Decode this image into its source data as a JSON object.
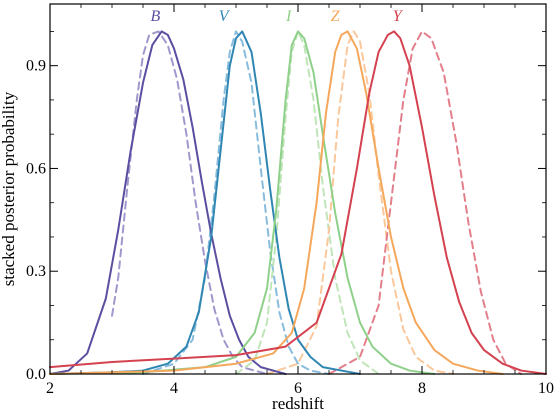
{
  "chart_data": {
    "type": "line",
    "xlabel": "redshift",
    "ylabel": "stacked posterior probability",
    "xlim": [
      2,
      10
    ],
    "ylim": [
      0,
      1.08
    ],
    "xticks": [
      2,
      4,
      6,
      8,
      10
    ],
    "xtick_labels": [
      "2",
      "4",
      "6",
      "8",
      "10"
    ],
    "yticks": [
      0.0,
      0.3,
      0.6,
      0.9
    ],
    "ytick_labels": [
      "0.0",
      "0.3",
      "0.6",
      "0.9"
    ],
    "grid": false,
    "legend": "none",
    "series": [
      {
        "name": "B",
        "color": "#5b4ea0",
        "style": "solid",
        "label_x": 3.7,
        "label_y": 1.03,
        "x": [
          2.0,
          2.3,
          2.6,
          2.9,
          3.1,
          3.3,
          3.5,
          3.65,
          3.8,
          3.9,
          4.0,
          4.15,
          4.3,
          4.45,
          4.6,
          4.75,
          4.9,
          5.05,
          5.2,
          5.4,
          5.6,
          5.8
        ],
        "y": [
          0.0,
          0.01,
          0.06,
          0.22,
          0.42,
          0.65,
          0.85,
          0.96,
          1.0,
          0.99,
          0.95,
          0.86,
          0.72,
          0.56,
          0.41,
          0.28,
          0.17,
          0.1,
          0.05,
          0.02,
          0.01,
          0.0
        ]
      },
      {
        "name": "",
        "color": "#9f98cc",
        "style": "dashed",
        "x": [
          3.0,
          3.1,
          3.25,
          3.4,
          3.5,
          3.6,
          3.75,
          3.9,
          4.05,
          4.2,
          4.35,
          4.5,
          4.65,
          4.8,
          4.95,
          5.1,
          5.3,
          5.5
        ],
        "y": [
          0.17,
          0.28,
          0.55,
          0.8,
          0.93,
          0.99,
          1.0,
          0.96,
          0.86,
          0.7,
          0.5,
          0.33,
          0.19,
          0.1,
          0.05,
          0.02,
          0.01,
          0.0
        ]
      },
      {
        "name": "V",
        "color": "#2f86b3",
        "style": "solid",
        "label_x": 4.8,
        "label_y": 1.03,
        "x": [
          2.0,
          3.0,
          3.5,
          3.9,
          4.2,
          4.4,
          4.6,
          4.75,
          4.9,
          5.0,
          5.1,
          5.25,
          5.4,
          5.55,
          5.7,
          5.85,
          6.0,
          6.2,
          6.4,
          6.7,
          7.0
        ],
        "y": [
          0.0,
          0.005,
          0.01,
          0.03,
          0.08,
          0.18,
          0.4,
          0.65,
          0.9,
          0.98,
          1.0,
          0.94,
          0.76,
          0.54,
          0.34,
          0.19,
          0.1,
          0.05,
          0.02,
          0.01,
          0.0
        ]
      },
      {
        "name": "",
        "color": "#88bcdc",
        "style": "dashed",
        "x": [
          3.5,
          4.0,
          4.3,
          4.5,
          4.65,
          4.8,
          4.9,
          5.0,
          5.1,
          5.25,
          5.4,
          5.55,
          5.7,
          5.85,
          6.0,
          6.2,
          6.5
        ],
        "y": [
          0.0,
          0.03,
          0.1,
          0.28,
          0.52,
          0.8,
          0.94,
          1.0,
          0.97,
          0.85,
          0.6,
          0.36,
          0.18,
          0.08,
          0.03,
          0.01,
          0.0
        ]
      },
      {
        "name": "I",
        "color": "#8fd08a",
        "style": "solid",
        "label_x": 5.85,
        "label_y": 1.03,
        "x": [
          2.0,
          3.5,
          4.5,
          5.0,
          5.3,
          5.5,
          5.65,
          5.8,
          5.9,
          6.0,
          6.1,
          6.25,
          6.4,
          6.6,
          6.8,
          7.0,
          7.2,
          7.5,
          7.8,
          8.2
        ],
        "y": [
          0.0,
          0.005,
          0.02,
          0.05,
          0.12,
          0.25,
          0.48,
          0.8,
          0.96,
          1.0,
          0.98,
          0.88,
          0.7,
          0.47,
          0.28,
          0.15,
          0.08,
          0.03,
          0.01,
          0.0
        ]
      },
      {
        "name": "",
        "color": "#bfe5b8",
        "style": "dashed",
        "x": [
          5.0,
          5.3,
          5.5,
          5.65,
          5.8,
          5.9,
          6.0,
          6.1,
          6.25,
          6.4,
          6.6,
          6.8,
          7.0,
          7.3
        ],
        "y": [
          0.0,
          0.04,
          0.15,
          0.4,
          0.75,
          0.94,
          1.0,
          0.96,
          0.8,
          0.55,
          0.28,
          0.12,
          0.04,
          0.0
        ]
      },
      {
        "name": "Z",
        "color": "#f5a75b",
        "style": "solid",
        "label_x": 6.6,
        "label_y": 1.03,
        "x": [
          2.0,
          4.0,
          5.0,
          5.6,
          5.9,
          6.1,
          6.3,
          6.45,
          6.6,
          6.7,
          6.8,
          6.95,
          7.1,
          7.3,
          7.5,
          7.7,
          7.9,
          8.2,
          8.5,
          8.9,
          9.3
        ],
        "y": [
          0.0,
          0.01,
          0.03,
          0.06,
          0.12,
          0.25,
          0.5,
          0.76,
          0.94,
          0.99,
          1.0,
          0.95,
          0.82,
          0.6,
          0.4,
          0.25,
          0.15,
          0.07,
          0.03,
          0.01,
          0.0
        ]
      },
      {
        "name": "",
        "color": "#fac89b",
        "style": "dashed",
        "x": [
          5.5,
          6.0,
          6.3,
          6.5,
          6.65,
          6.8,
          6.9,
          7.0,
          7.15,
          7.3,
          7.5,
          7.7,
          7.9,
          8.2,
          8.5
        ],
        "y": [
          0.0,
          0.03,
          0.14,
          0.42,
          0.75,
          0.96,
          1.0,
          0.97,
          0.82,
          0.58,
          0.3,
          0.13,
          0.05,
          0.01,
          0.0
        ]
      },
      {
        "name": "Y",
        "color": "#d4414f",
        "style": "solid",
        "label_x": 7.6,
        "label_y": 1.03,
        "x": [
          2.0,
          3.0,
          4.0,
          5.0,
          5.8,
          6.3,
          6.7,
          6.95,
          7.15,
          7.3,
          7.45,
          7.55,
          7.65,
          7.8,
          8.0,
          8.2,
          8.4,
          8.6,
          8.8,
          9.0,
          9.3,
          9.6,
          10.0
        ],
        "y": [
          0.02,
          0.035,
          0.045,
          0.055,
          0.08,
          0.15,
          0.35,
          0.6,
          0.82,
          0.94,
          0.99,
          1.0,
          0.98,
          0.9,
          0.72,
          0.52,
          0.34,
          0.21,
          0.12,
          0.07,
          0.03,
          0.01,
          0.0
        ]
      },
      {
        "name": "",
        "color": "#e27f8b",
        "style": "dashed",
        "x": [
          6.5,
          7.0,
          7.3,
          7.5,
          7.7,
          7.85,
          8.0,
          8.15,
          8.35,
          8.55,
          8.75,
          8.95,
          9.15,
          9.35,
          9.6
        ],
        "y": [
          0.0,
          0.05,
          0.2,
          0.5,
          0.8,
          0.95,
          1.0,
          0.98,
          0.88,
          0.68,
          0.44,
          0.24,
          0.1,
          0.03,
          0.0
        ]
      }
    ]
  }
}
